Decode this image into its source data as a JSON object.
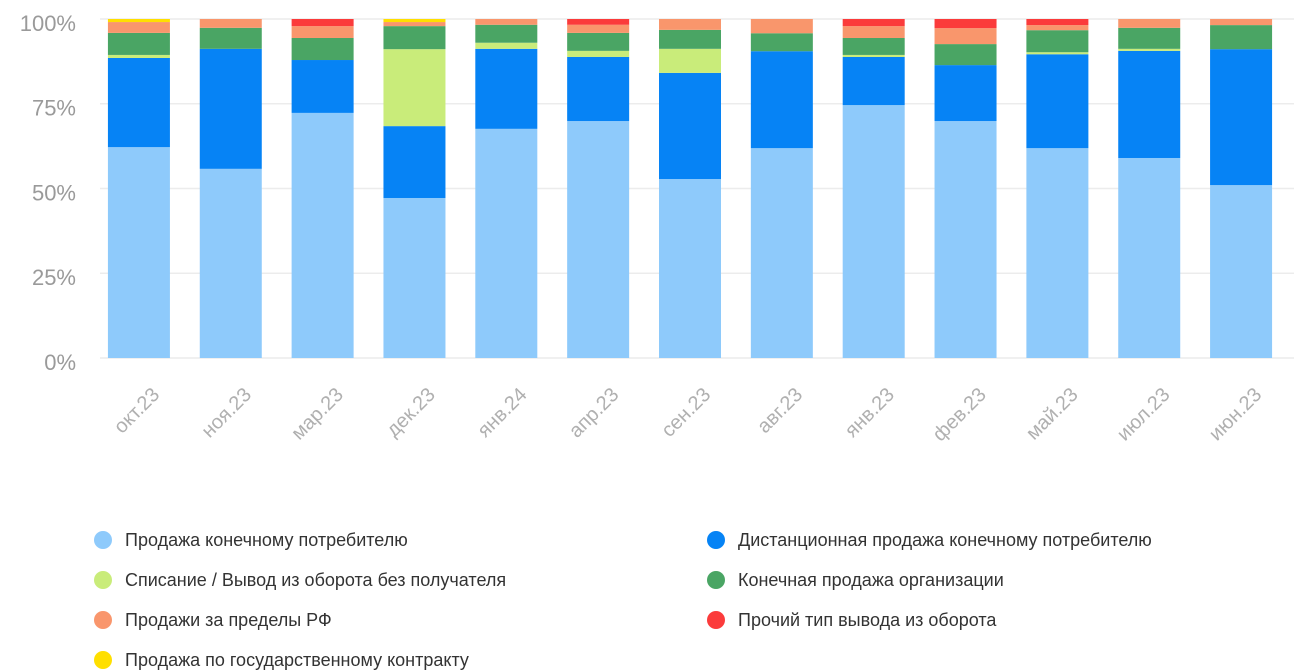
{
  "chart_data": {
    "type": "stacked_bar",
    "categories": [
      "окт.23",
      "ноя.23",
      "мар.23",
      "дек.23",
      "янв.24",
      "апр.23",
      "сен.23",
      "авг.23",
      "янв.23",
      "фев.23",
      "май.23",
      "июл.23",
      "июн.23"
    ],
    "series": [
      {
        "name": "Продажа конечному потребителю",
        "color": "#8ecafb",
        "values": [
          62.2,
          55.8,
          72.3,
          47.2,
          67.6,
          69.9,
          52.8,
          61.9,
          74.6,
          69.9,
          61.9,
          59.0,
          51.0
        ]
      },
      {
        "name": "Дистанционная продажа конечному потребителю",
        "color": "#0683f5",
        "values": [
          26.3,
          35.4,
          15.6,
          21.2,
          23.6,
          18.9,
          31.3,
          28.6,
          14.2,
          16.5,
          27.7,
          31.6,
          40.1
        ]
      },
      {
        "name": "Списание / Вывод из оборота без получателя",
        "color": "#c9ec7a",
        "values": [
          0.9,
          0,
          0,
          22.7,
          1.8,
          1.8,
          7.1,
          0,
          0.6,
          0,
          0.6,
          0.6,
          0
        ]
      },
      {
        "name": "Конечная продажа организации",
        "color": "#4aa564",
        "values": [
          6.5,
          6.2,
          6.5,
          6.8,
          5.3,
          5.3,
          5.6,
          5.3,
          5.0,
          6.2,
          6.5,
          6.2,
          7.1
        ]
      },
      {
        "name": "Продажи за пределы РФ",
        "color": "#f9966c",
        "values": [
          3.2,
          2.6,
          3.5,
          1.2,
          1.7,
          2.4,
          3.2,
          4.2,
          3.5,
          4.7,
          1.5,
          2.6,
          1.8
        ]
      },
      {
        "name": "Прочий тип вывода из оборота",
        "color": "#fb3b3b",
        "values": [
          0,
          0,
          2.1,
          0,
          0,
          1.7,
          0,
          0,
          2.1,
          2.7,
          1.8,
          0,
          0
        ]
      },
      {
        "name": "Продажа по государственному контракту",
        "color": "#ffdf00",
        "values": [
          0.9,
          0,
          0,
          0.9,
          0,
          0,
          0,
          0,
          0,
          0,
          0,
          0,
          0
        ]
      }
    ],
    "ylim": [
      0,
      100
    ],
    "yticks": [
      {
        "value": 0,
        "label": "0%"
      },
      {
        "value": 25,
        "label": "25%"
      },
      {
        "value": 50,
        "label": "50%"
      },
      {
        "value": 75,
        "label": "75%"
      },
      {
        "value": 100,
        "label": "100%"
      }
    ],
    "grid": true,
    "legend": "bottom"
  }
}
